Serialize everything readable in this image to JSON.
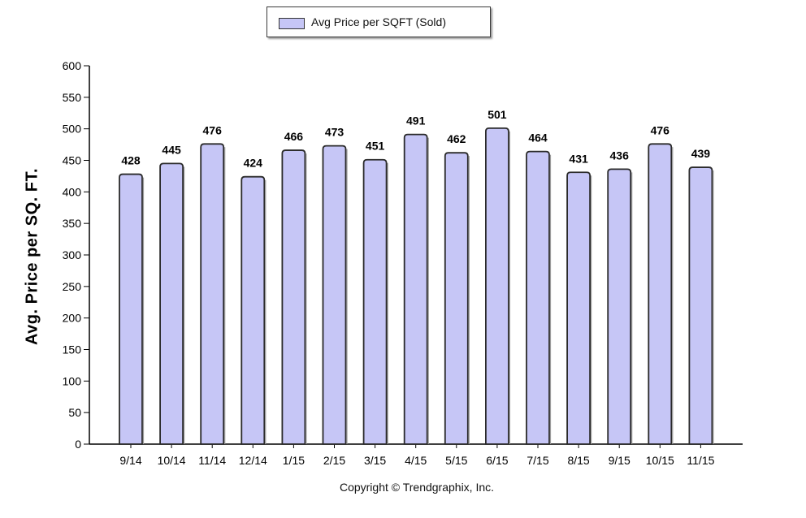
{
  "chart_data": {
    "type": "bar",
    "categories": [
      "9/14",
      "10/14",
      "11/14",
      "12/14",
      "1/15",
      "2/15",
      "3/15",
      "4/15",
      "5/15",
      "6/15",
      "7/15",
      "8/15",
      "9/15",
      "10/15",
      "11/15"
    ],
    "series": [
      {
        "name": "Avg Price per SQFT (Sold)",
        "values": [
          428,
          445,
          476,
          424,
          466,
          473,
          451,
          491,
          462,
          501,
          464,
          431,
          436,
          476,
          439
        ]
      }
    ],
    "ylabel": "Avg. Price per SQ. FT.",
    "xlabel": "",
    "ylim": [
      0,
      600
    ],
    "yticks": [
      0,
      50,
      100,
      150,
      200,
      250,
      300,
      350,
      400,
      450,
      500,
      550,
      600
    ],
    "data_labels": true,
    "legend_placement": "top-center",
    "grid": false,
    "colors": {
      "bar_fill": "#c6c6f6",
      "bar_stroke": "#2a2a2a",
      "axis": "#000000"
    }
  },
  "legend": {
    "label": "Avg Price per SQFT (Sold)"
  },
  "footer": {
    "copyright": "Copyright © Trendgraphix, Inc."
  }
}
